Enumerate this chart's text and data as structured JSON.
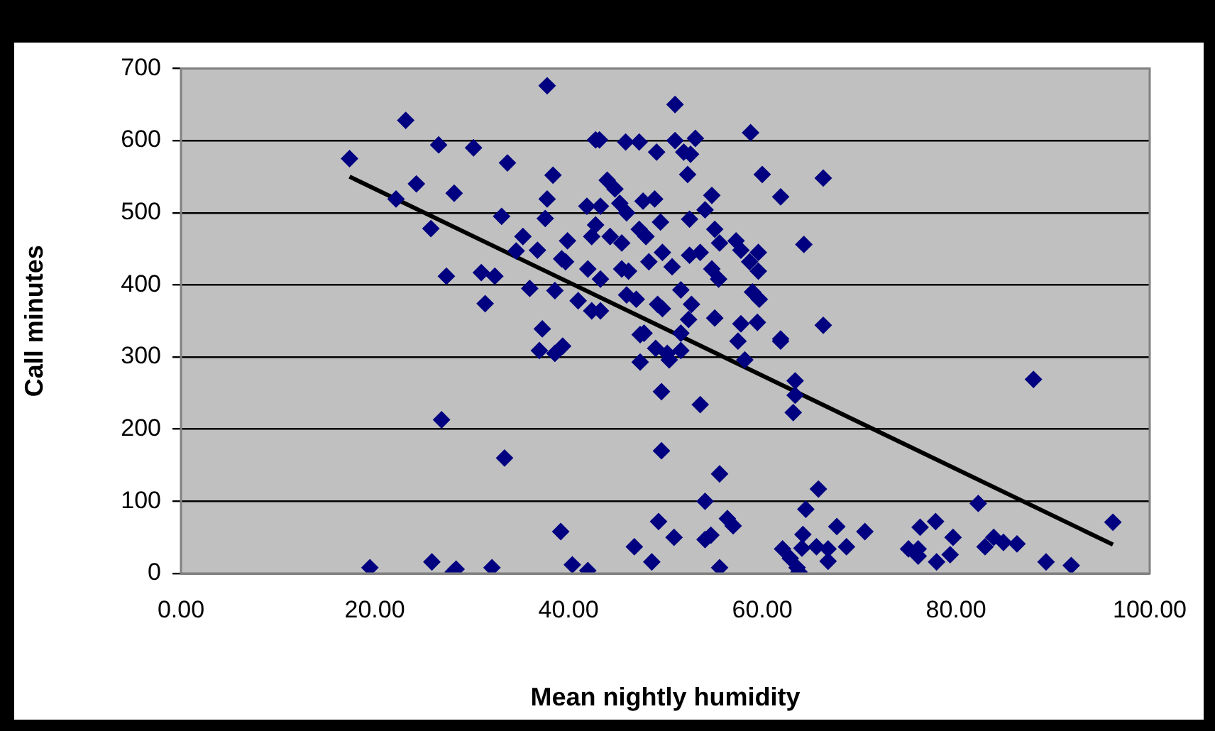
{
  "chart_data": {
    "type": "scatter",
    "xlabel": "Mean nightly humidity",
    "ylabel": "Call minutes",
    "xlim": [
      0,
      100
    ],
    "ylim": [
      0,
      700
    ],
    "xticks": [
      {
        "value": 0,
        "label": "0.00"
      },
      {
        "value": 20,
        "label": "20.00"
      },
      {
        "value": 40,
        "label": "40.00"
      },
      {
        "value": 60,
        "label": "60.00"
      },
      {
        "value": 80,
        "label": "80.00"
      },
      {
        "value": 100,
        "label": "100.00"
      }
    ],
    "yticks": [
      0,
      100,
      200,
      300,
      400,
      500,
      600,
      700
    ],
    "grid": "y",
    "legend": false,
    "marker": "diamond",
    "series": [
      {
        "color": "#000080",
        "x": [
          17.4,
          23.2,
          26.6,
          30.2,
          37.8,
          33.7,
          38.4,
          37.8,
          24.3,
          22.2,
          28.2,
          33.1,
          37.6,
          25.8,
          35.3,
          34.6,
          36.8,
          39.3,
          27.4,
          31.0,
          32.4,
          36.0,
          38.6,
          31.4,
          37.3,
          26.9,
          33.4,
          39.2,
          19.5,
          25.9,
          28.4,
          28.1,
          32.1,
          37.0,
          38.6,
          39.4,
          51.0,
          42.8,
          43.2,
          45.9,
          47.3,
          49.1,
          51.0,
          53.1,
          51.9,
          52.6,
          58.8,
          52.3,
          60.0,
          66.3,
          61.9,
          44.0,
          44.8,
          41.9,
          43.3,
          45.3,
          46.0,
          47.7,
          48.9,
          54.8,
          54.1,
          42.8,
          42.4,
          44.3,
          45.5,
          47.3,
          48.0,
          49.5,
          52.5,
          55.1,
          55.6,
          57.3,
          57.8,
          59.6,
          64.3,
          39.9,
          39.7,
          42.0,
          43.3,
          45.5,
          46.2,
          48.3,
          49.7,
          50.7,
          52.5,
          53.6,
          54.8,
          55.5,
          58.7,
          59.6,
          41.0,
          42.4,
          43.3,
          46.0,
          47.0,
          49.2,
          49.7,
          51.6,
          52.7,
          52.4,
          55.1,
          57.8,
          59.5,
          59.0,
          59.7,
          66.3,
          47.8,
          51.6,
          61.9,
          47.4,
          47.4,
          49.0,
          50.2,
          51.6,
          50.4,
          49.6,
          53.6,
          57.5,
          58.2,
          61.9,
          63.4,
          63.4,
          63.2,
          49.6,
          55.6,
          54.1,
          65.8,
          64.5,
          49.3,
          50.9,
          46.8,
          48.6,
          40.4,
          42.0,
          54.1,
          54.7,
          56.4,
          57.0,
          55.6,
          62.1,
          62.9,
          63.6,
          63.8,
          64.2,
          64.1,
          65.6,
          66.8,
          67.7,
          68.7,
          88.0,
          82.3,
          96.2,
          70.6,
          66.8,
          75.1,
          76.1,
          76.3,
          77.9,
          76.1,
          78.0,
          79.7,
          79.4,
          83.0,
          83.9,
          84.9,
          86.3,
          89.3,
          91.9
        ],
        "values": [
          575,
          628,
          594,
          590,
          676,
          569,
          552,
          519,
          540,
          519,
          527,
          495,
          492,
          478,
          467,
          447,
          448,
          436,
          412,
          417,
          412,
          395,
          392,
          374,
          339,
          213,
          160,
          58,
          8,
          16,
          6,
          2,
          8,
          309,
          305,
          315,
          650,
          601,
          601,
          598,
          598,
          584,
          600,
          603,
          584,
          581,
          611,
          553,
          553,
          548,
          522,
          545,
          533,
          509,
          509,
          513,
          500,
          516,
          519,
          524,
          504,
          483,
          467,
          467,
          458,
          477,
          467,
          487,
          491,
          477,
          458,
          461,
          448,
          445,
          456,
          461,
          432,
          422,
          408,
          422,
          419,
          432,
          445,
          425,
          441,
          445,
          422,
          408,
          432,
          419,
          378,
          364,
          364,
          386,
          380,
          373,
          367,
          393,
          373,
          352,
          354,
          346,
          348,
          390,
          380,
          344,
          333,
          333,
          325,
          331,
          293,
          312,
          305,
          309,
          296,
          252,
          234,
          322,
          296,
          322,
          267,
          247,
          223,
          170,
          138,
          100,
          117,
          89,
          72,
          50,
          37,
          16,
          12,
          4,
          47,
          53,
          76,
          66,
          8,
          34,
          21,
          8,
          2,
          54,
          35,
          37,
          17,
          65,
          37,
          269,
          97,
          71,
          58,
          34,
          34,
          24,
          64,
          72,
          34,
          16,
          50,
          26,
          37,
          50,
          43,
          41,
          16,
          11
        ]
      },
      {
        "type": "line",
        "color": "#000000",
        "x": [
          17.4,
          96.2
        ],
        "values": [
          550,
          40
        ],
        "marker": "none"
      }
    ]
  }
}
